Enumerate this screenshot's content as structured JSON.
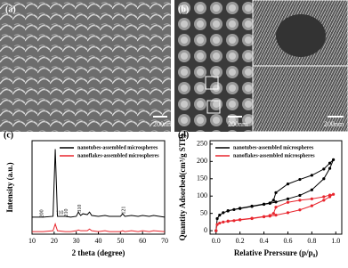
{
  "images": [
    {
      "label": "(a)",
      "scale_bars": [
        "200nm"
      ]
    },
    {
      "label": "(b)",
      "scale_bars": [
        "200nm",
        "200nm"
      ]
    }
  ],
  "chart_data": [
    {
      "type": "line",
      "panel_label": "(c)",
      "x_label": "2 theta (degree)",
      "y_label": "Intensity (a.u.)",
      "x": [
        10,
        15,
        19.5,
        20.5,
        21.5,
        25,
        27.5,
        30,
        31,
        32,
        33,
        35,
        36,
        37,
        40,
        43,
        45,
        50,
        51,
        52,
        55,
        58,
        60,
        63,
        65,
        70
      ],
      "series": [
        {
          "name": "nanotubes-assembled microspheres",
          "color": "#000000",
          "values": [
            20,
            20,
            21,
            100,
            21,
            21,
            20,
            21,
            26,
            22,
            24,
            23,
            26,
            22,
            21,
            22,
            21,
            21,
            24,
            21,
            22,
            21,
            22,
            21,
            22,
            20
          ]
        },
        {
          "name": "nanoflakes-assembled microspheres",
          "color": "#e8262e",
          "values": [
            3,
            3,
            4,
            12,
            4,
            3,
            3,
            4,
            5,
            4,
            4,
            4,
            6,
            4,
            3,
            4,
            3,
            3,
            4,
            3,
            4,
            3,
            4,
            3,
            4,
            3
          ]
        }
      ],
      "peak_labels": [
        {
          "label": "200",
          "x": 14.5
        },
        {
          "label": "110",
          "x": 22.5
        },
        {
          "label": "210",
          "x": 25.5
        },
        {
          "label": "310",
          "x": 31.5
        },
        {
          "label": "121",
          "x": 51.5
        }
      ],
      "xlim": [
        10,
        70
      ],
      "xticks": [
        10,
        20,
        30,
        40,
        50,
        60,
        70
      ],
      "ylim": [
        0,
        110
      ],
      "legend": "upper right"
    },
    {
      "type": "line",
      "panel_label": "(d)",
      "x_label": "Relative Prerssure (p/p₀)",
      "y_label": "Quantity Adsorbed(cm³/g STP)",
      "series": [
        {
          "name": "nanotubes-assembled microspheres",
          "color": "#000000",
          "x": [
            0,
            0.01,
            0.03,
            0.06,
            0.1,
            0.15,
            0.2,
            0.3,
            0.4,
            0.45,
            0.5,
            0.6,
            0.7,
            0.8,
            0.9,
            0.95,
            0.98,
            0.95,
            0.9,
            0.8,
            0.7,
            0.6,
            0.5,
            0.48,
            0.45,
            0.4,
            0.3,
            0.2,
            0.1
          ],
          "values": [
            0,
            35,
            45,
            52,
            57,
            61,
            64,
            70,
            76,
            79,
            83,
            92,
            102,
            118,
            150,
            180,
            205,
            195,
            178,
            160,
            148,
            135,
            110,
            88,
            80,
            77,
            71,
            65,
            58
          ]
        },
        {
          "name": "nanoflakes-assembled microspheres",
          "color": "#e8262e",
          "x": [
            0,
            0.01,
            0.03,
            0.06,
            0.1,
            0.15,
            0.2,
            0.3,
            0.4,
            0.45,
            0.5,
            0.6,
            0.7,
            0.8,
            0.9,
            0.95,
            0.98,
            0.95,
            0.9,
            0.8,
            0.7,
            0.6,
            0.5,
            0.48,
            0.45,
            0.4,
            0.3,
            0.2,
            0.1
          ],
          "values": [
            0,
            18,
            22,
            25,
            27,
            29,
            31,
            35,
            40,
            42,
            45,
            52,
            60,
            72,
            88,
            98,
            105,
            103,
            98,
            92,
            88,
            82,
            68,
            50,
            44,
            41,
            36,
            32,
            28
          ]
        }
      ],
      "xlim": [
        -0.05,
        1.05
      ],
      "xticks": [
        {
          "value": 0,
          "label": "0.0"
        },
        0.2,
        0.4,
        0.6,
        0.8,
        {
          "value": 1,
          "label": "1.0"
        }
      ],
      "ylim": [
        -10,
        260
      ],
      "yticks": [
        0,
        50,
        100,
        150,
        200,
        250
      ],
      "legend": "upper left"
    }
  ]
}
